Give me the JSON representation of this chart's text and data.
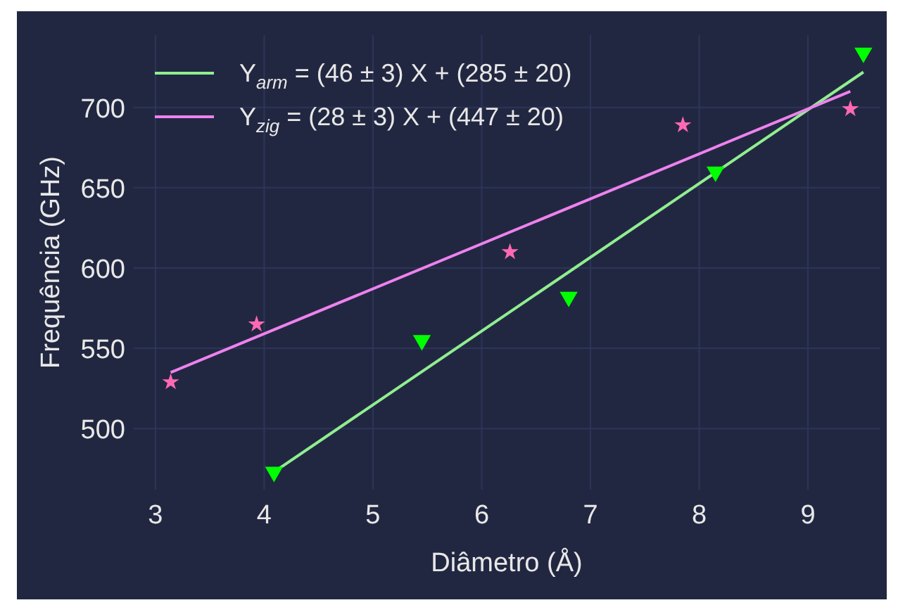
{
  "chart_data": {
    "type": "scatter",
    "xlabel": "Diâmetro (Å)",
    "ylabel": "Frequência (GHz)",
    "xlim": [
      2.8,
      9.66
    ],
    "ylim": [
      462,
      745
    ],
    "xticks": [
      3,
      4,
      5,
      6,
      7,
      8,
      9
    ],
    "yticks": [
      500,
      550,
      600,
      650,
      700
    ],
    "grid": true,
    "legend": "top left",
    "series": [
      {
        "type": "line",
        "name": "Y$_{arm}$ = (46 ± 3) X + (285 ± 20)",
        "color": "#90ee90",
        "x": [
          4.09,
          9.51
        ],
        "values": [
          473,
          722
        ]
      },
      {
        "type": "line",
        "name": "Y$_{zig}$ = (28 ± 3) X + (447 ± 20)",
        "color": "#ee82ee",
        "x": [
          3.14,
          9.39
        ],
        "values": [
          535,
          710
        ]
      },
      {
        "color": "#00ff00",
        "marker": "triangle",
        "x": [
          4.09,
          5.45,
          6.8,
          8.15,
          9.51
        ],
        "values": [
          473,
          555,
          582,
          660,
          734
        ]
      },
      {
        "color": "#ff69b4",
        "marker": "star",
        "x": [
          3.14,
          3.93,
          6.26,
          7.85,
          9.39
        ],
        "values": [
          529,
          565,
          610,
          689,
          699
        ]
      }
    ]
  }
}
